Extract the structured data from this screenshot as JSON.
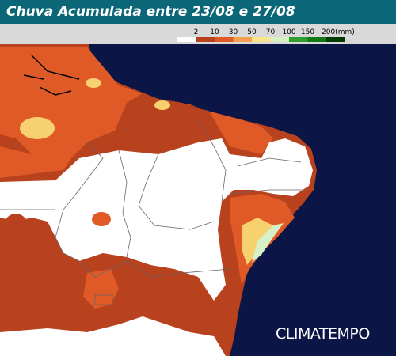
{
  "header": {
    "title": "Chuva Acumulada entre 23/08 e 27/08"
  },
  "legend": {
    "labels": [
      "2",
      "10",
      "30",
      "50",
      "70",
      "100",
      "150",
      "200(mm)"
    ]
  },
  "logo": "CLIMATEMPO"
}
